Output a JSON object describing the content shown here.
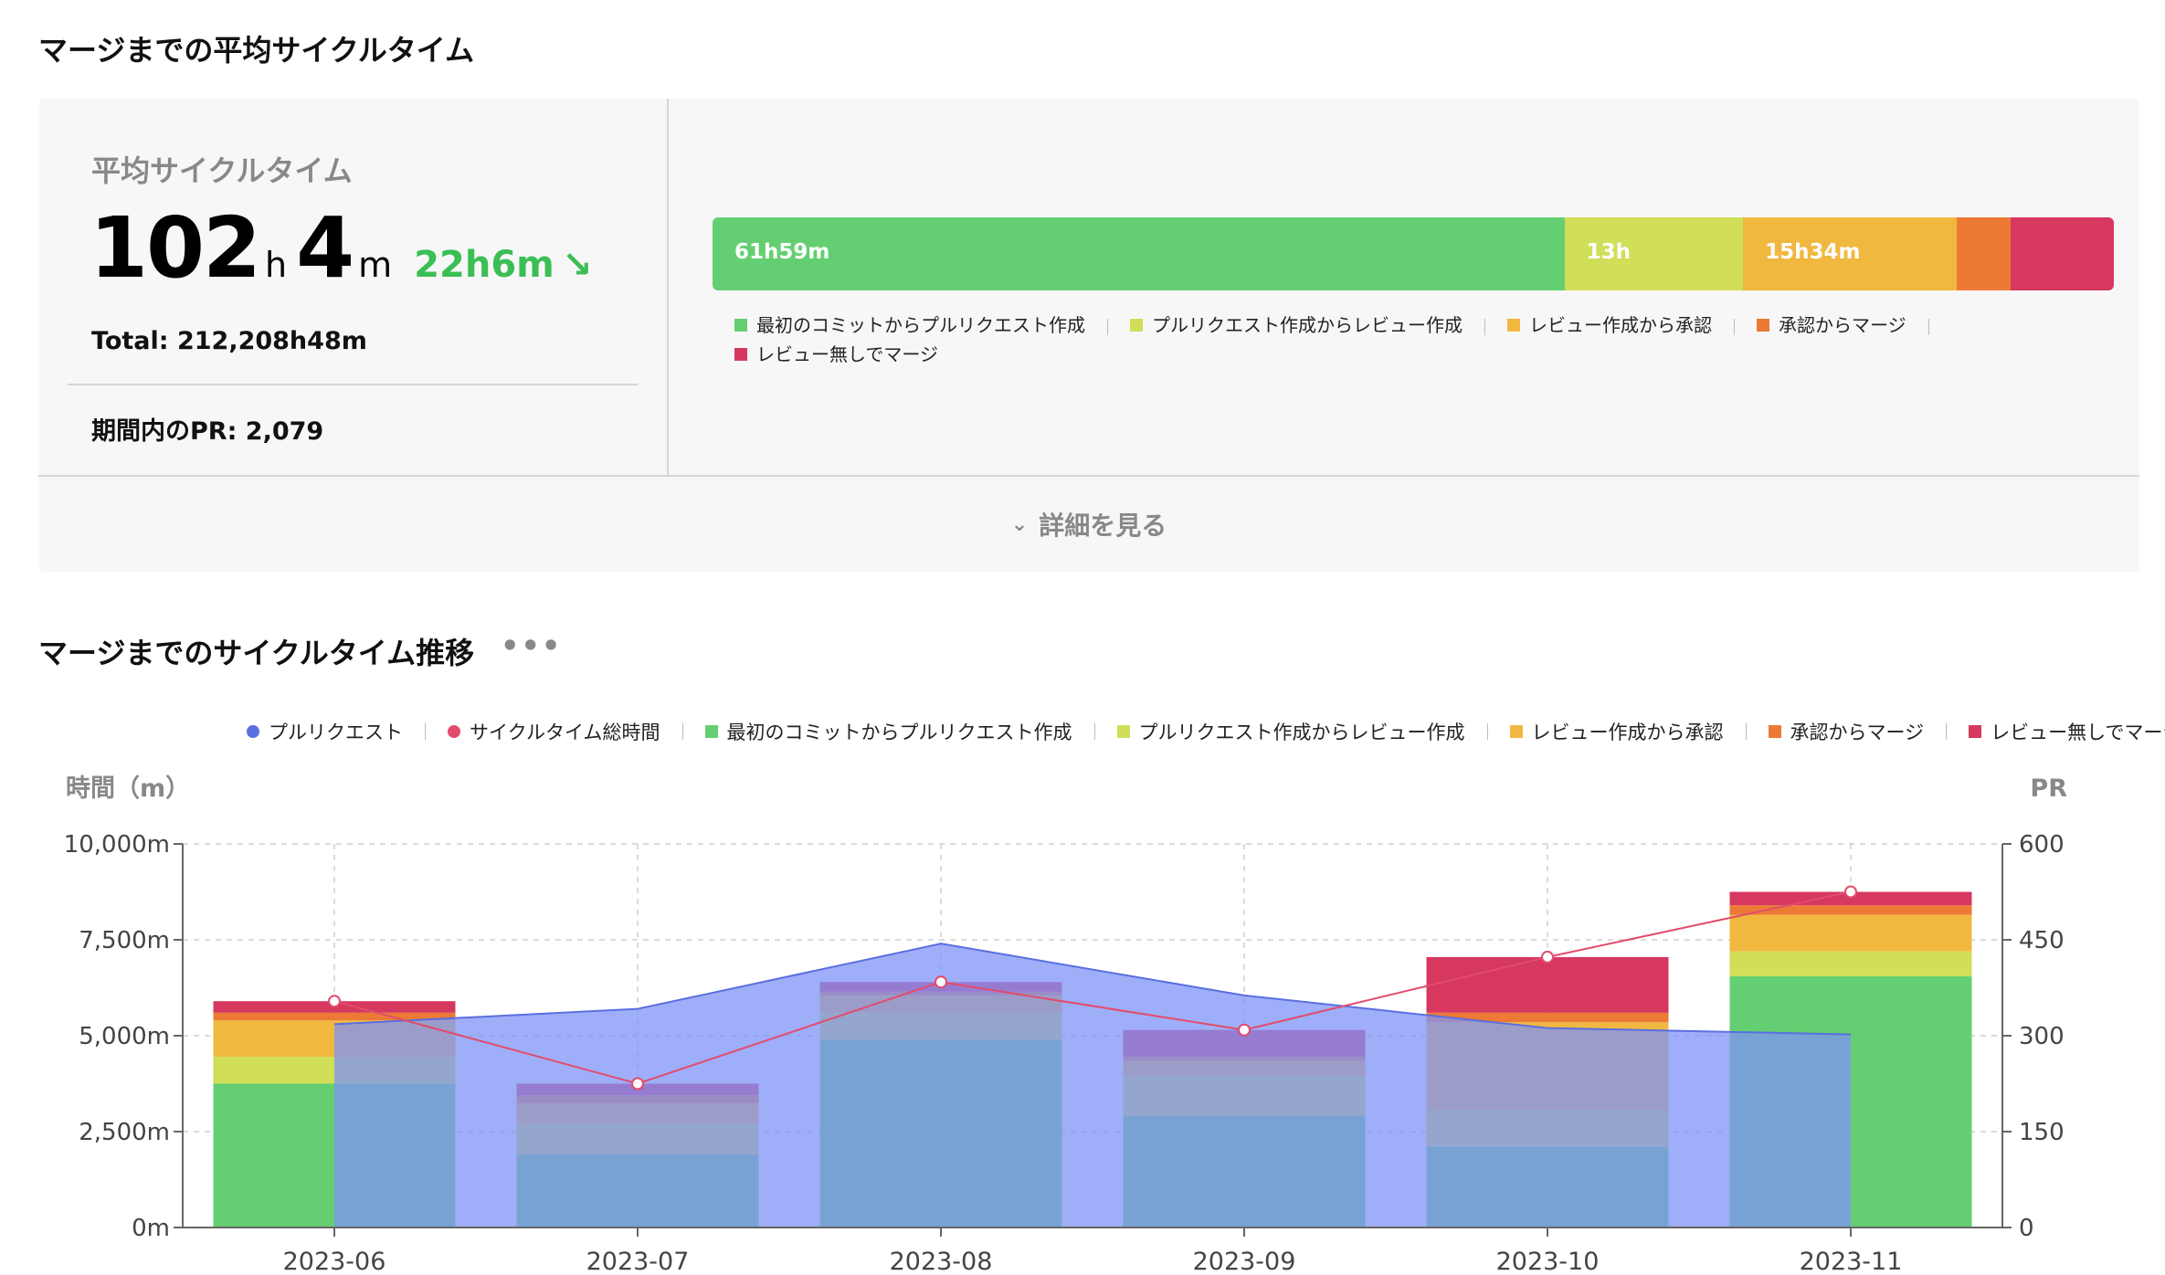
{
  "header": {
    "title": "マージまでの平均サイクルタイム"
  },
  "summary": {
    "label": "平均サイクルタイム",
    "hours": "102",
    "hours_unit": "h",
    "minutes": "4",
    "minutes_unit": "m",
    "delta": "22h6m",
    "delta_arrow": "↘",
    "total": "Total: 212,208h48m",
    "pr_count": "期間内のPR: 2,079"
  },
  "breakdown_bar": {
    "segments": [
      {
        "label": "61h59m",
        "value": 61.98,
        "color": "#64cf72"
      },
      {
        "label": "13h",
        "value": 13.0,
        "color": "#d1de57"
      },
      {
        "label": "15h34m",
        "value": 15.57,
        "color": "#f1b840"
      },
      {
        "label": "",
        "value": 3.9,
        "color": "#ec7a34"
      },
      {
        "label": "",
        "value": 7.5,
        "color": "#d6385f"
      }
    ]
  },
  "legend_top": [
    {
      "label": "最初のコミットからプルリクエスト作成",
      "color": "#64cf72"
    },
    {
      "label": "プルリクエスト作成からレビュー作成",
      "color": "#d1de57"
    },
    {
      "label": "レビュー作成から承認",
      "color": "#f1b840"
    },
    {
      "label": "承認からマージ",
      "color": "#ec7a34"
    },
    {
      "label": "レビュー無しでマージ",
      "color": "#d6385f"
    }
  ],
  "details_button": {
    "label": "詳細を見る"
  },
  "trend": {
    "title": "マージまでのサイクルタイム推移",
    "more_label": "•••"
  },
  "colors": {
    "pr_area": "#7f93f5",
    "pr_line": "#5a6fe0",
    "total_line": "#e24c6c"
  },
  "chart_data": {
    "type": "bar",
    "categories": [
      "2023-06",
      "2023-07",
      "2023-08",
      "2023-09",
      "2023-10",
      "2023-11"
    ],
    "ylabel": "時間（m）",
    "y2label": "PR",
    "ylim": [
      0,
      10000
    ],
    "y2lim": [
      0,
      600
    ],
    "yticks": [
      "0m",
      "2,500m",
      "5,000m",
      "7,500m",
      "10,000m"
    ],
    "y2ticks": [
      "0",
      "150",
      "300",
      "450",
      "600"
    ],
    "grid": true,
    "legend_position": "top",
    "series": [
      {
        "name": "最初のコミットからプルリクエスト作成",
        "kind": "stacked-bar",
        "color": "#64cf72",
        "values": [
          3750,
          1900,
          4900,
          2900,
          2100,
          6550
        ]
      },
      {
        "name": "プルリクエスト作成からレビュー作成",
        "kind": "stacked-bar",
        "color": "#d1de57",
        "values": [
          700,
          800,
          700,
          1050,
          950,
          650
        ]
      },
      {
        "name": "レビュー作成から承認",
        "kind": "stacked-bar",
        "color": "#f1b840",
        "values": [
          950,
          550,
          450,
          400,
          2300,
          950
        ]
      },
      {
        "name": "承認からマージ",
        "kind": "stacked-bar",
        "color": "#ec7a34",
        "values": [
          200,
          200,
          100,
          100,
          250,
          250
        ]
      },
      {
        "name": "レビュー無しでマージ",
        "kind": "stacked-bar",
        "color": "#d6385f",
        "values": [
          300,
          300,
          250,
          700,
          1450,
          350
        ]
      },
      {
        "name": "プルリクエスト",
        "kind": "area",
        "axis": "y2",
        "color": "#7f93f5",
        "values": [
          318,
          342,
          444,
          363,
          312,
          302
        ]
      },
      {
        "name": "サイクルタイム総時間",
        "kind": "line",
        "color": "#e24c6c",
        "values": [
          5900,
          3750,
          6400,
          5150,
          7050,
          8750
        ]
      }
    ]
  }
}
